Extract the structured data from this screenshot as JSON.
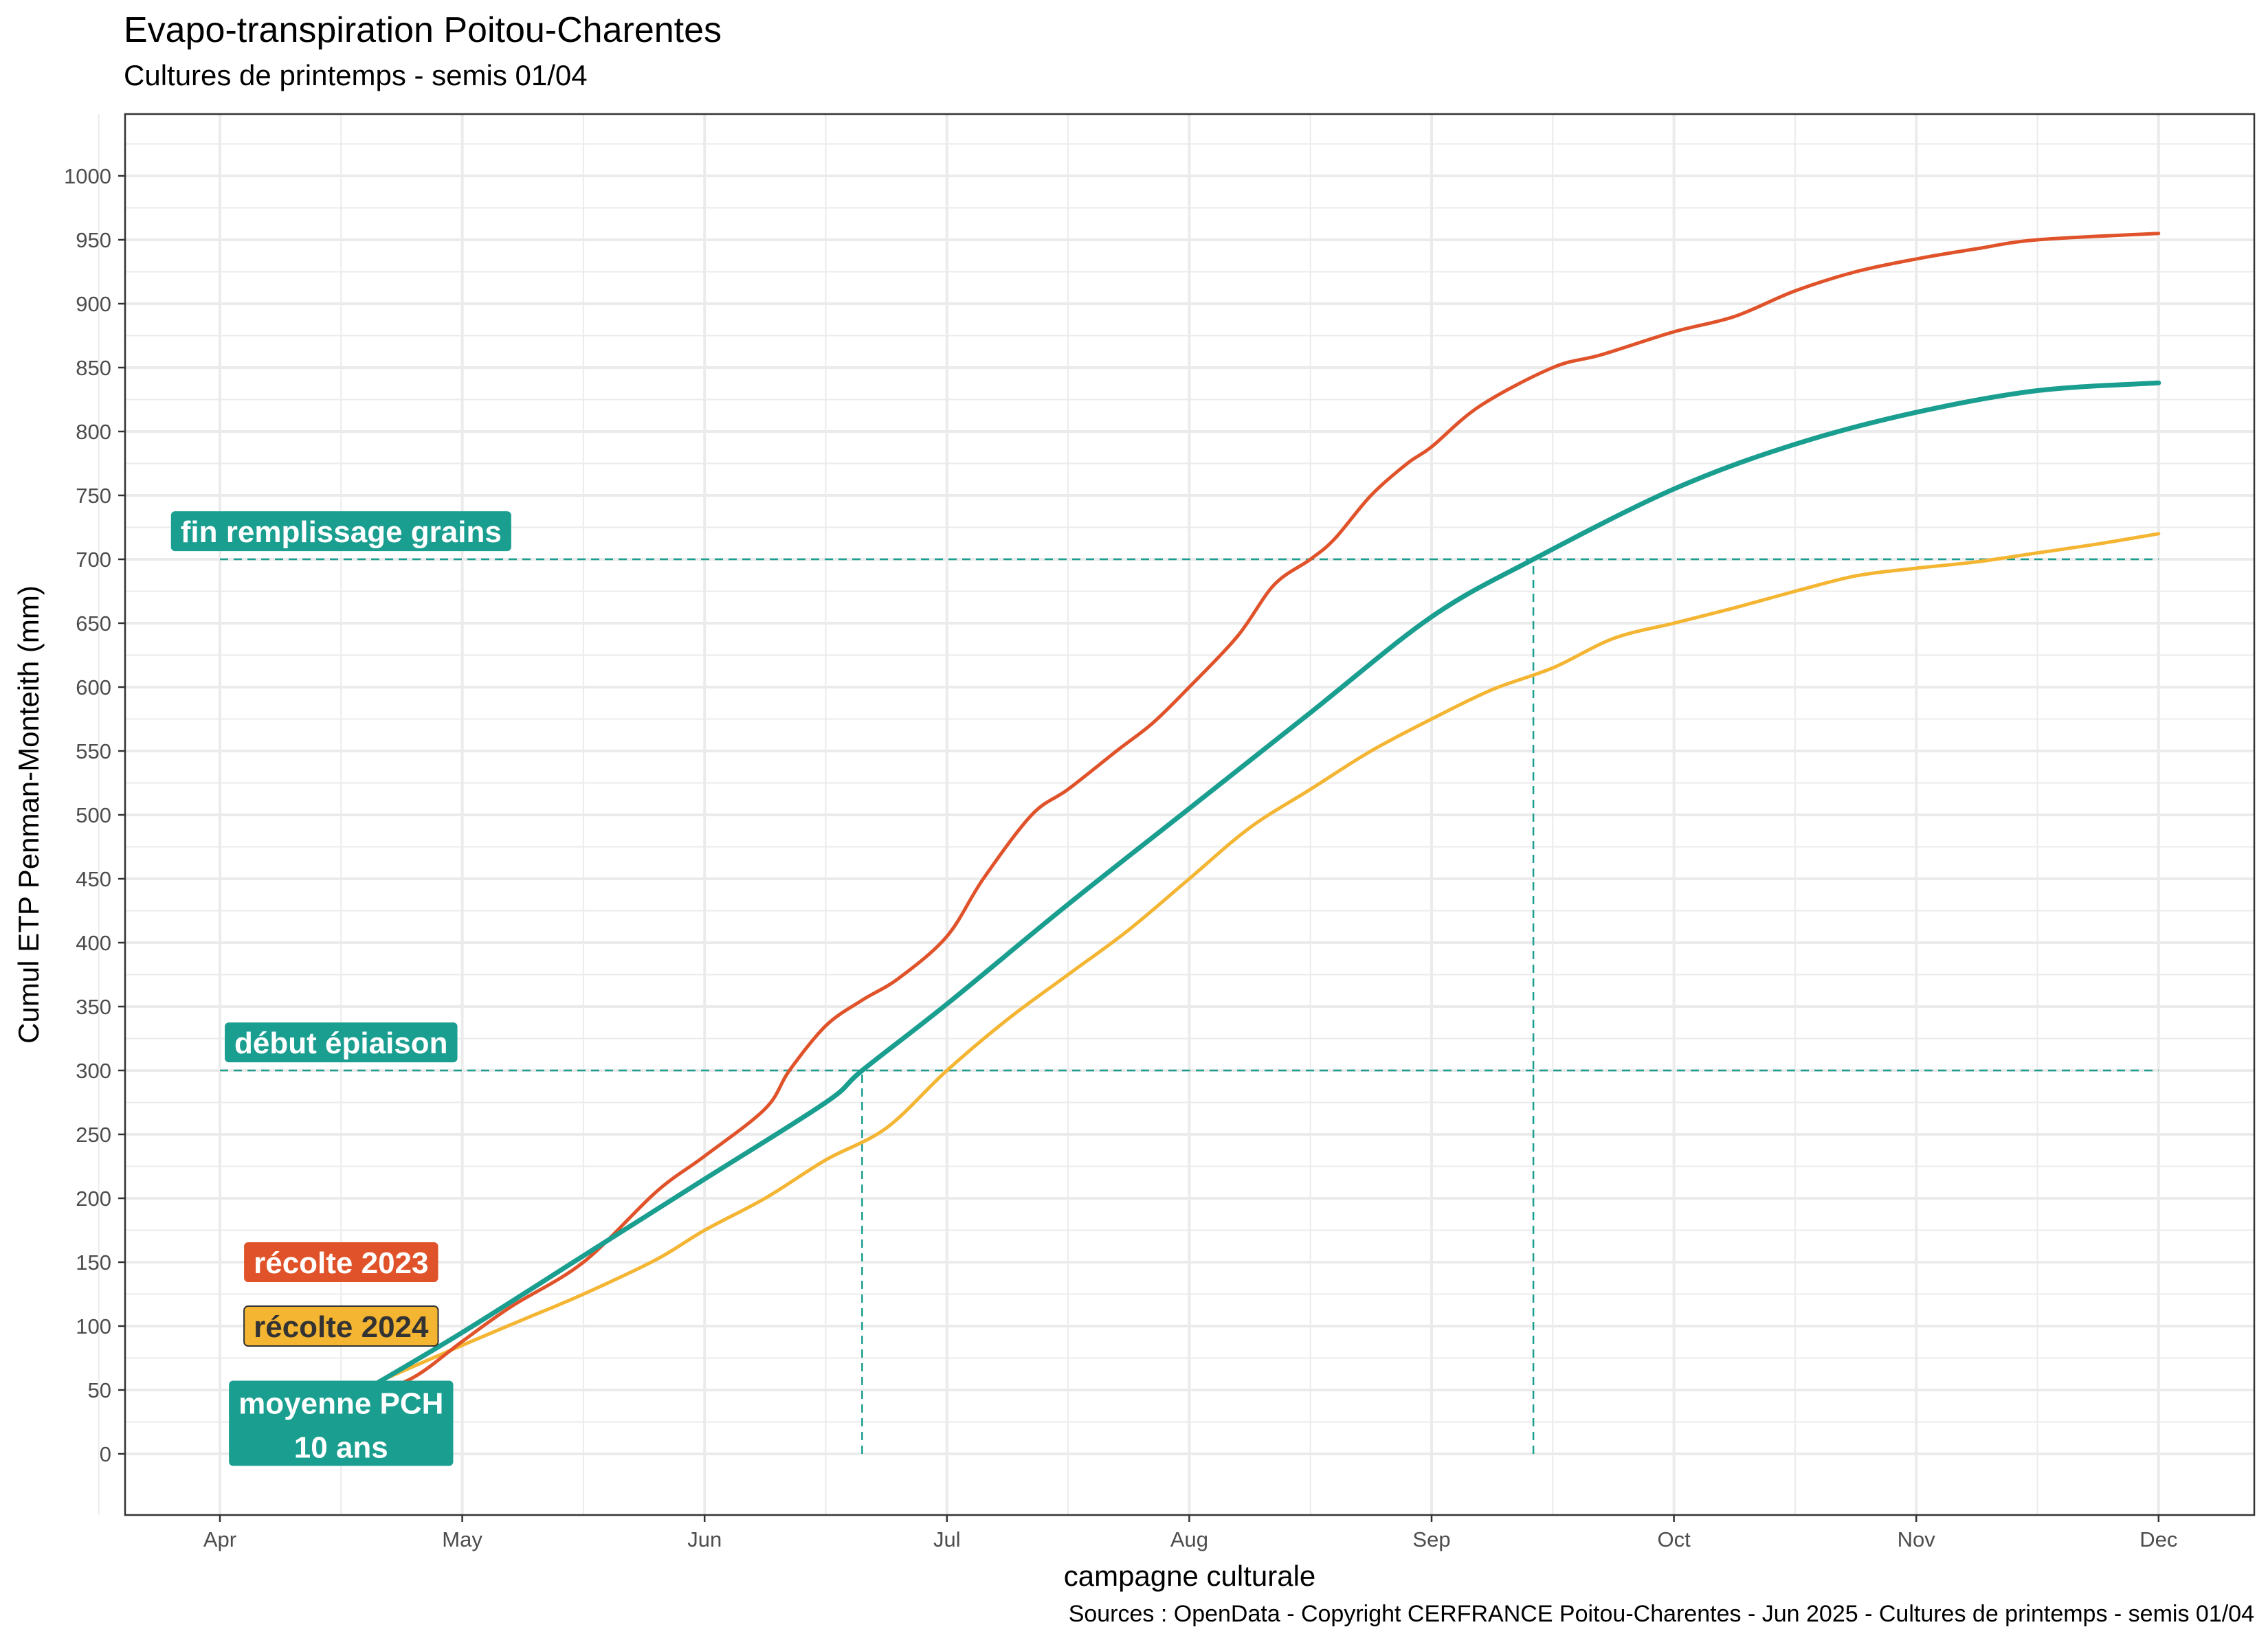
{
  "chart_data": {
    "type": "line",
    "title": "Evapo-transpiration Poitou-Charentes",
    "subtitle": "Cultures de printemps - semis 01/04",
    "xlabel": "campagne culturale",
    "ylabel": "Cumul ETP Penman-Monteith (mm)",
    "caption": "Sources : OpenData - Copyright CERFRANCE Poitou-Charentes - Jun 2025 - Cultures de printemps - semis 01/04",
    "x_ticks": [
      "Apr",
      "May",
      "Jun",
      "Jul",
      "Aug",
      "Sep",
      "Oct",
      "Nov",
      "Dec"
    ],
    "x_unit": "month index (0 = Apr 1, 8 = Dec 1)",
    "xlim": [
      -0.4,
      8.4
    ],
    "ylim": [
      -48,
      1048
    ],
    "y_ticks": [
      0,
      50,
      100,
      150,
      200,
      250,
      300,
      350,
      400,
      450,
      500,
      550,
      600,
      650,
      700,
      750,
      800,
      850,
      900,
      950,
      1000
    ],
    "grid": true,
    "colors": {
      "r2023": "#e0532a",
      "r2024": "#f4b533",
      "moyenne": "#1a9e8f",
      "frame": "#333333",
      "grid": "#ebebeb"
    },
    "series": [
      {
        "key": "moyenne",
        "x": [
          0.6,
          1.0,
          1.5,
          2.0,
          2.5,
          2.65,
          3.0,
          3.5,
          4.0,
          4.5,
          5.0,
          5.42,
          6.0,
          6.5,
          7.0,
          7.5,
          8.0
        ],
        "values": [
          50,
          95,
          155,
          215,
          275,
          300,
          352,
          430,
          505,
          580,
          655,
          700,
          755,
          790,
          815,
          832,
          838
        ]
      },
      {
        "key": "r2023",
        "x": [
          0.6,
          0.8,
          1.0,
          1.2,
          1.5,
          1.8,
          2.0,
          2.25,
          2.35,
          2.5,
          2.65,
          2.8,
          3.0,
          3.15,
          3.35,
          3.5,
          3.7,
          3.85,
          4.0,
          4.2,
          4.35,
          4.5,
          4.6,
          4.75,
          4.9,
          5.0,
          5.2,
          5.5,
          5.7,
          6.0,
          6.25,
          6.5,
          6.75,
          7.0,
          7.25,
          7.5,
          8.0
        ],
        "values": [
          45,
          60,
          88,
          115,
          150,
          205,
          233,
          270,
          300,
          335,
          355,
          372,
          405,
          450,
          500,
          520,
          550,
          572,
          600,
          640,
          680,
          700,
          716,
          750,
          775,
          788,
          820,
          850,
          860,
          878,
          890,
          910,
          925,
          935,
          943,
          950,
          955
        ]
      },
      {
        "key": "r2024",
        "x": [
          0.6,
          1.0,
          1.25,
          1.5,
          1.8,
          2.0,
          2.25,
          2.5,
          2.75,
          3.0,
          3.25,
          3.5,
          3.75,
          4.0,
          4.25,
          4.5,
          4.75,
          5.0,
          5.25,
          5.5,
          5.75,
          6.0,
          6.25,
          6.5,
          6.75,
          7.0,
          7.25,
          7.5,
          7.75,
          8.0
        ],
        "values": [
          52,
          85,
          105,
          125,
          152,
          175,
          200,
          230,
          255,
          300,
          340,
          375,
          410,
          450,
          490,
          520,
          550,
          575,
          598,
          615,
          638,
          650,
          662,
          675,
          687,
          693,
          698,
          705,
          712,
          720
        ]
      }
    ],
    "hlines": [
      {
        "y": 700,
        "x_from": 0,
        "x_to": 8
      },
      {
        "y": 300,
        "x_from": 0,
        "x_to": 8
      }
    ],
    "vlines": [
      {
        "x": 2.65,
        "y_to": 300
      },
      {
        "x": 5.42,
        "y_to": 700
      }
    ],
    "annotations": [
      {
        "key": "fin",
        "text": "fin remplissage grains",
        "x": 0.5,
        "y": 722,
        "bg": "#1a9e8f",
        "fg": "#ffffff"
      },
      {
        "key": "debut",
        "text": "début épiaison",
        "x": 0.5,
        "y": 322,
        "bg": "#1a9e8f",
        "fg": "#ffffff"
      },
      {
        "key": "r2023",
        "text": "récolte 2023",
        "x": 0.5,
        "y": 150,
        "bg": "#e0532a",
        "fg": "#ffffff"
      },
      {
        "key": "r2024",
        "text": "récolte 2024",
        "x": 0.5,
        "y": 100,
        "bg": "#f4b533",
        "fg": "#333333"
      },
      {
        "key": "moyenne",
        "text": "moyenne PCH",
        "text2": "10 ans",
        "x": 0.5,
        "y": 25,
        "bg": "#1a9e8f",
        "fg": "#ffffff"
      }
    ]
  }
}
